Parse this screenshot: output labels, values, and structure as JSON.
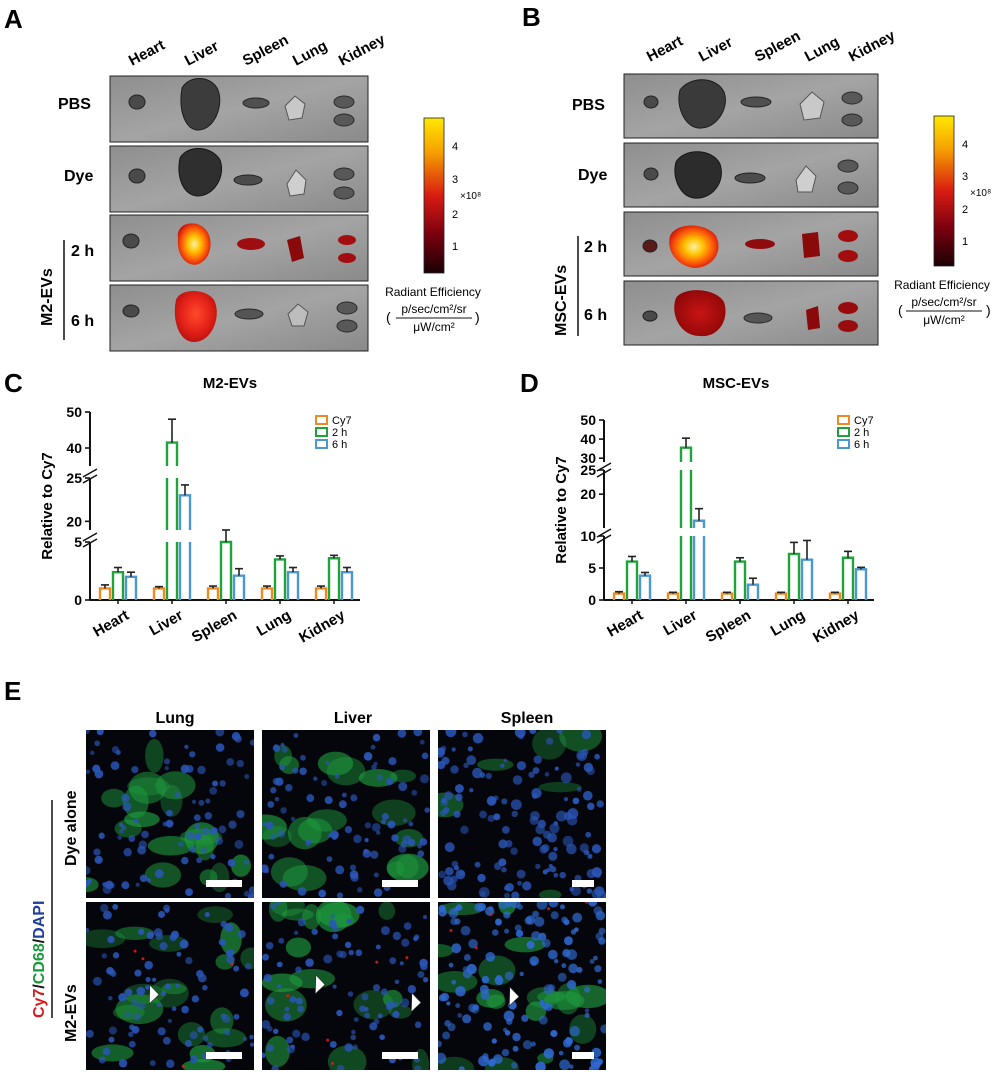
{
  "panel_letters": {
    "a": "A",
    "b": "B",
    "c": "C",
    "d": "D",
    "e": "E"
  },
  "organs": [
    "Heart",
    "Liver",
    "Spleen",
    "Lung",
    "Kidney"
  ],
  "panel_a": {
    "rows": [
      "PBS",
      "Dye"
    ],
    "group": "M2-EVs",
    "times": [
      "2 h",
      "6 h"
    ]
  },
  "panel_b": {
    "rows": [
      "PBS",
      "Dye"
    ],
    "group": "MSC-EVs",
    "times": [
      "2 h",
      "6 h"
    ]
  },
  "colorbar": {
    "ticks": [
      "1",
      "2",
      "3",
      "4"
    ],
    "multiplier": "×10⁸",
    "label": "Radiant Efficiency",
    "unit_numerator": "p/sec/cm²/sr",
    "unit_denominator": "μW/cm²",
    "paren_open": "(",
    "paren_close": ")",
    "colors": [
      "#1a0004",
      "#7a0010",
      "#d81c12",
      "#f6a000",
      "#ffe800"
    ]
  },
  "legend": [
    "Cy7",
    "2 h",
    "6 h"
  ],
  "series_colors": {
    "Cy7": "#ee8a22",
    "2h": "#1fa33a",
    "6h": "#4a97d3"
  },
  "chart_data": [
    {
      "type": "bar",
      "title": "M2-EVs",
      "ylabel": "Relative to Cy7",
      "categories": [
        "Heart",
        "Liver",
        "Spleen",
        "Lung",
        "Kidney"
      ],
      "series": [
        {
          "name": "Cy7",
          "values": [
            1.0,
            1.0,
            1.0,
            1.0,
            1.0
          ],
          "errors": [
            0.3,
            0.15,
            0.2,
            0.2,
            0.2
          ]
        },
        {
          "name": "2 h",
          "values": [
            2.4,
            41.5,
            5.0,
            3.5,
            3.6
          ],
          "errors": [
            0.4,
            6.5,
            0.8,
            0.3,
            0.25
          ]
        },
        {
          "name": "6 h",
          "values": [
            2.0,
            23.0,
            2.1,
            2.4,
            2.4
          ],
          "errors": [
            0.4,
            1.2,
            0.6,
            0.4,
            0.4
          ]
        }
      ],
      "y_segments": [
        {
          "range": [
            0,
            5
          ],
          "ticks": [
            "0",
            "5"
          ]
        },
        {
          "range": [
            19,
            25
          ],
          "ticks": [
            "20",
            "25"
          ]
        },
        {
          "range": [
            35,
            50
          ],
          "ticks": [
            "40",
            "50"
          ]
        }
      ]
    },
    {
      "type": "bar",
      "title": "MSC-EVs",
      "ylabel": "Relative to Cy7",
      "categories": [
        "Heart",
        "Liver",
        "Spleen",
        "Lung",
        "Kidney"
      ],
      "series": [
        {
          "name": "Cy7",
          "values": [
            1.0,
            1.0,
            1.0,
            1.0,
            1.0
          ],
          "errors": [
            0.3,
            0.2,
            0.2,
            0.2,
            0.2
          ]
        },
        {
          "name": "2 h",
          "values": [
            6.0,
            35.5,
            6.0,
            7.2,
            6.6
          ],
          "errors": [
            0.8,
            5.0,
            0.6,
            1.8,
            1.0
          ]
        },
        {
          "name": "6 h",
          "values": [
            3.8,
            14.5,
            2.4,
            6.3,
            4.8
          ],
          "errors": [
            0.5,
            2.5,
            1.0,
            3.0,
            0.3
          ]
        }
      ],
      "y_segments": [
        {
          "range": [
            0,
            10
          ],
          "ticks": [
            "0",
            "5",
            "10"
          ]
        },
        {
          "range": [
            13,
            25
          ],
          "ticks": [
            "20",
            "25"
          ]
        },
        {
          "range": [
            28,
            50
          ],
          "ticks": [
            "30",
            "40",
            "50"
          ]
        }
      ]
    }
  ],
  "panel_e": {
    "columns": [
      "Lung",
      "Liver",
      "Spleen"
    ],
    "rows": [
      "Dye alone",
      "M2-EVs"
    ],
    "stain_label": {
      "cy7": "Cy7",
      "sep1": "/",
      "cd68": "CD68",
      "sep2": "/",
      "dapi": "DAPI"
    },
    "stain_colors": {
      "cy7": "#d41c1c",
      "cd68": "#1c9a3e",
      "dapi": "#1f3f9e"
    }
  }
}
